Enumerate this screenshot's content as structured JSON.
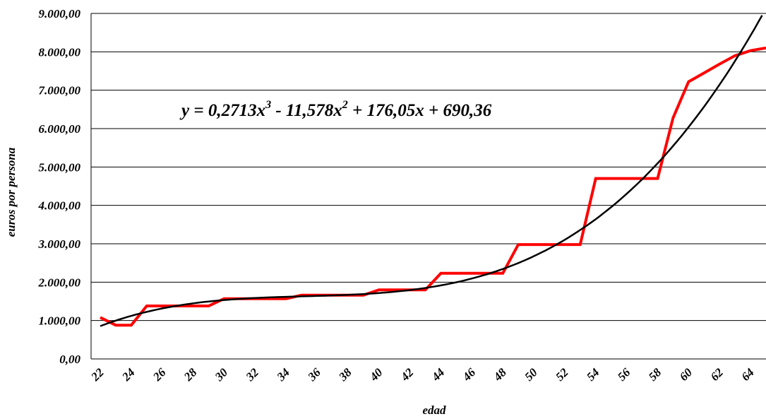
{
  "chart_data": {
    "type": "line",
    "xlabel": "edad",
    "ylabel": "euros por persona",
    "ylim": [
      0,
      9000
    ],
    "xlim": [
      22,
      65
    ],
    "y_ticks": [
      0,
      1000,
      2000,
      3000,
      4000,
      5000,
      6000,
      7000,
      8000,
      9000
    ],
    "y_tick_labels": [
      "0,00",
      "1.000,00",
      "2.000,00",
      "3.000,00",
      "4.000,00",
      "5.000,00",
      "6.000,00",
      "7.000,00",
      "8.000,00",
      "9.000,00"
    ],
    "x_tick_labels": [
      "22",
      "24",
      "26",
      "28",
      "30",
      "32",
      "34",
      "36",
      "38",
      "40",
      "42",
      "44",
      "46",
      "48",
      "50",
      "52",
      "54",
      "56",
      "58",
      "60",
      "62",
      "64"
    ],
    "grid": "horizontal",
    "annotation": {
      "parts": [
        "y = 0,2713x",
        "3",
        " - 11,578x",
        "2",
        " + 176,05x + 690,36"
      ]
    },
    "series": [
      {
        "color": "#ff0000",
        "x": [
          22,
          23,
          24,
          25,
          26,
          27,
          28,
          29,
          30,
          31,
          32,
          33,
          34,
          35,
          36,
          37,
          38,
          39,
          40,
          41,
          42,
          43,
          44,
          45,
          46,
          47,
          48,
          49,
          50,
          51,
          52,
          53,
          54,
          55,
          56,
          57,
          58,
          59,
          60,
          61,
          62,
          63,
          64,
          65
        ],
        "y": [
          1080,
          880,
          880,
          1380,
          1380,
          1380,
          1380,
          1380,
          1570,
          1570,
          1570,
          1570,
          1570,
          1660,
          1660,
          1660,
          1660,
          1660,
          1800,
          1800,
          1800,
          1800,
          2230,
          2230,
          2230,
          2230,
          2230,
          2980,
          2980,
          2980,
          2980,
          2980,
          4700,
          4700,
          4700,
          4700,
          4700,
          6280,
          7220,
          7450,
          7680,
          7900,
          8030,
          8100
        ]
      },
      {
        "color": "#000000",
        "type": "trendline",
        "coefficients": [
          0.2713,
          -11.578,
          176.05,
          690.36
        ],
        "x_index_start": 1
      }
    ]
  }
}
